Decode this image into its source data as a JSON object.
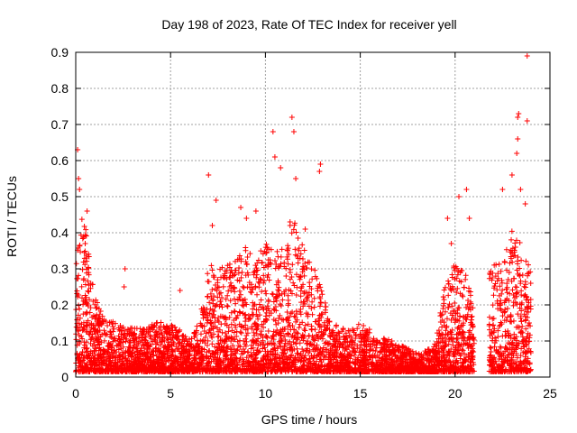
{
  "chart_data": {
    "type": "scatter",
    "title": "Day 198 of 2023, Rate Of TEC Index for receiver yell",
    "xlabel": "GPS time / hours",
    "ylabel": "ROTI / TECUs",
    "xlim": [
      0,
      25
    ],
    "ylim": [
      0,
      0.9
    ],
    "xticks": [
      0,
      5,
      10,
      15,
      20,
      25
    ],
    "yticks": [
      0,
      0.1,
      0.2,
      0.3,
      0.4,
      0.5,
      0.6,
      0.7,
      0.8,
      0.9
    ],
    "grid": true,
    "marker": "+",
    "color": "#ff0000",
    "data_gap_hours": [
      21.0,
      21.8
    ],
    "envelope": {
      "description": "approximate upper envelope of the dense ROTI scatter (hour, ROTI)",
      "x": [
        0.0,
        0.3,
        0.6,
        1.0,
        1.5,
        2.5,
        3.5,
        4.5,
        5.5,
        6.0,
        6.5,
        7.0,
        7.5,
        8.0,
        8.5,
        9.0,
        9.5,
        10.0,
        10.5,
        11.0,
        11.5,
        12.0,
        12.5,
        13.0,
        13.5,
        14.0,
        15.0,
        16.0,
        17.0,
        18.0,
        18.5,
        19.0,
        19.5,
        20.0,
        20.5,
        21.0,
        22.0,
        22.5,
        23.0,
        23.5,
        24.0
      ],
      "y": [
        0.3,
        0.45,
        0.38,
        0.22,
        0.15,
        0.13,
        0.12,
        0.14,
        0.12,
        0.09,
        0.14,
        0.3,
        0.28,
        0.3,
        0.32,
        0.35,
        0.3,
        0.38,
        0.34,
        0.36,
        0.42,
        0.35,
        0.3,
        0.22,
        0.14,
        0.12,
        0.14,
        0.1,
        0.08,
        0.05,
        0.06,
        0.1,
        0.25,
        0.3,
        0.28,
        0.2,
        0.3,
        0.3,
        0.4,
        0.35,
        0.28
      ]
    },
    "points": {
      "x": [
        0.1,
        0.15,
        0.2,
        0.6,
        0.5,
        2.6,
        2.55,
        5.5,
        7.0,
        7.4,
        7.2,
        8.7,
        9.0,
        9.5,
        10.4,
        10.5,
        10.8,
        11.3,
        11.3,
        11.4,
        11.5,
        11.6,
        12.1,
        12.9,
        12.85,
        19.6,
        19.8,
        20.2,
        20.6,
        20.75,
        22.5,
        23.0,
        23.25,
        23.3,
        23.3,
        23.35,
        23.45,
        23.7,
        23.8,
        23.8
      ],
      "y": [
        0.63,
        0.55,
        0.52,
        0.46,
        0.37,
        0.3,
        0.25,
        0.24,
        0.56,
        0.49,
        0.42,
        0.47,
        0.44,
        0.46,
        0.68,
        0.61,
        0.58,
        0.43,
        0.42,
        0.72,
        0.68,
        0.55,
        0.41,
        0.59,
        0.57,
        0.44,
        0.37,
        0.5,
        0.52,
        0.44,
        0.52,
        0.56,
        0.62,
        0.66,
        0.72,
        0.73,
        0.52,
        0.48,
        0.89,
        0.71
      ]
    }
  }
}
